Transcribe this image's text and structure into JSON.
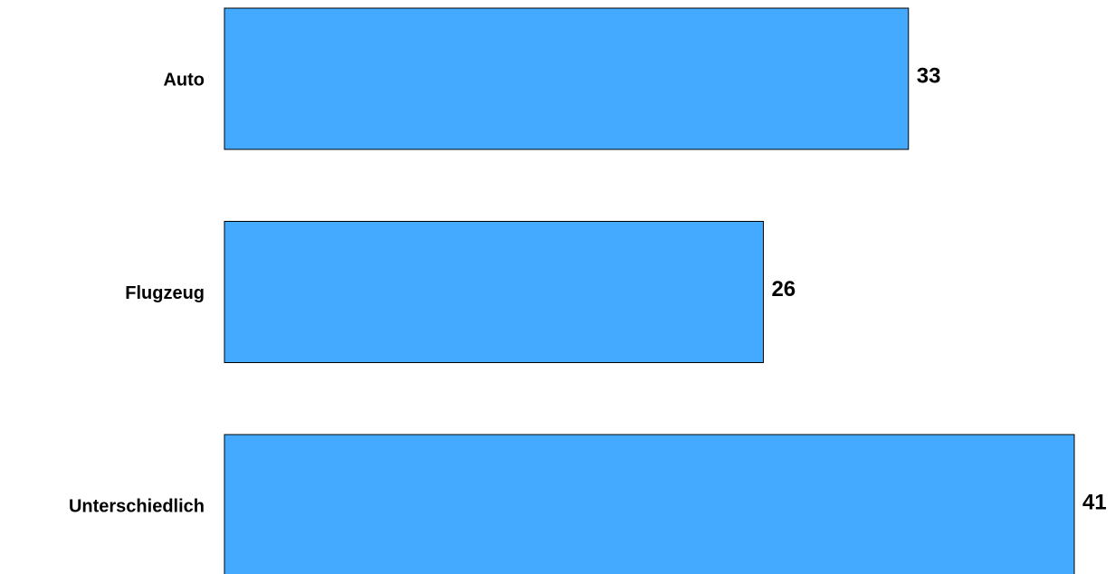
{
  "chart_data": {
    "type": "bar",
    "orientation": "horizontal",
    "categories": [
      "Auto",
      "Flugzeug",
      "Unterschiedlich"
    ],
    "values": [
      33,
      26,
      41
    ],
    "color": "#44aaff"
  }
}
